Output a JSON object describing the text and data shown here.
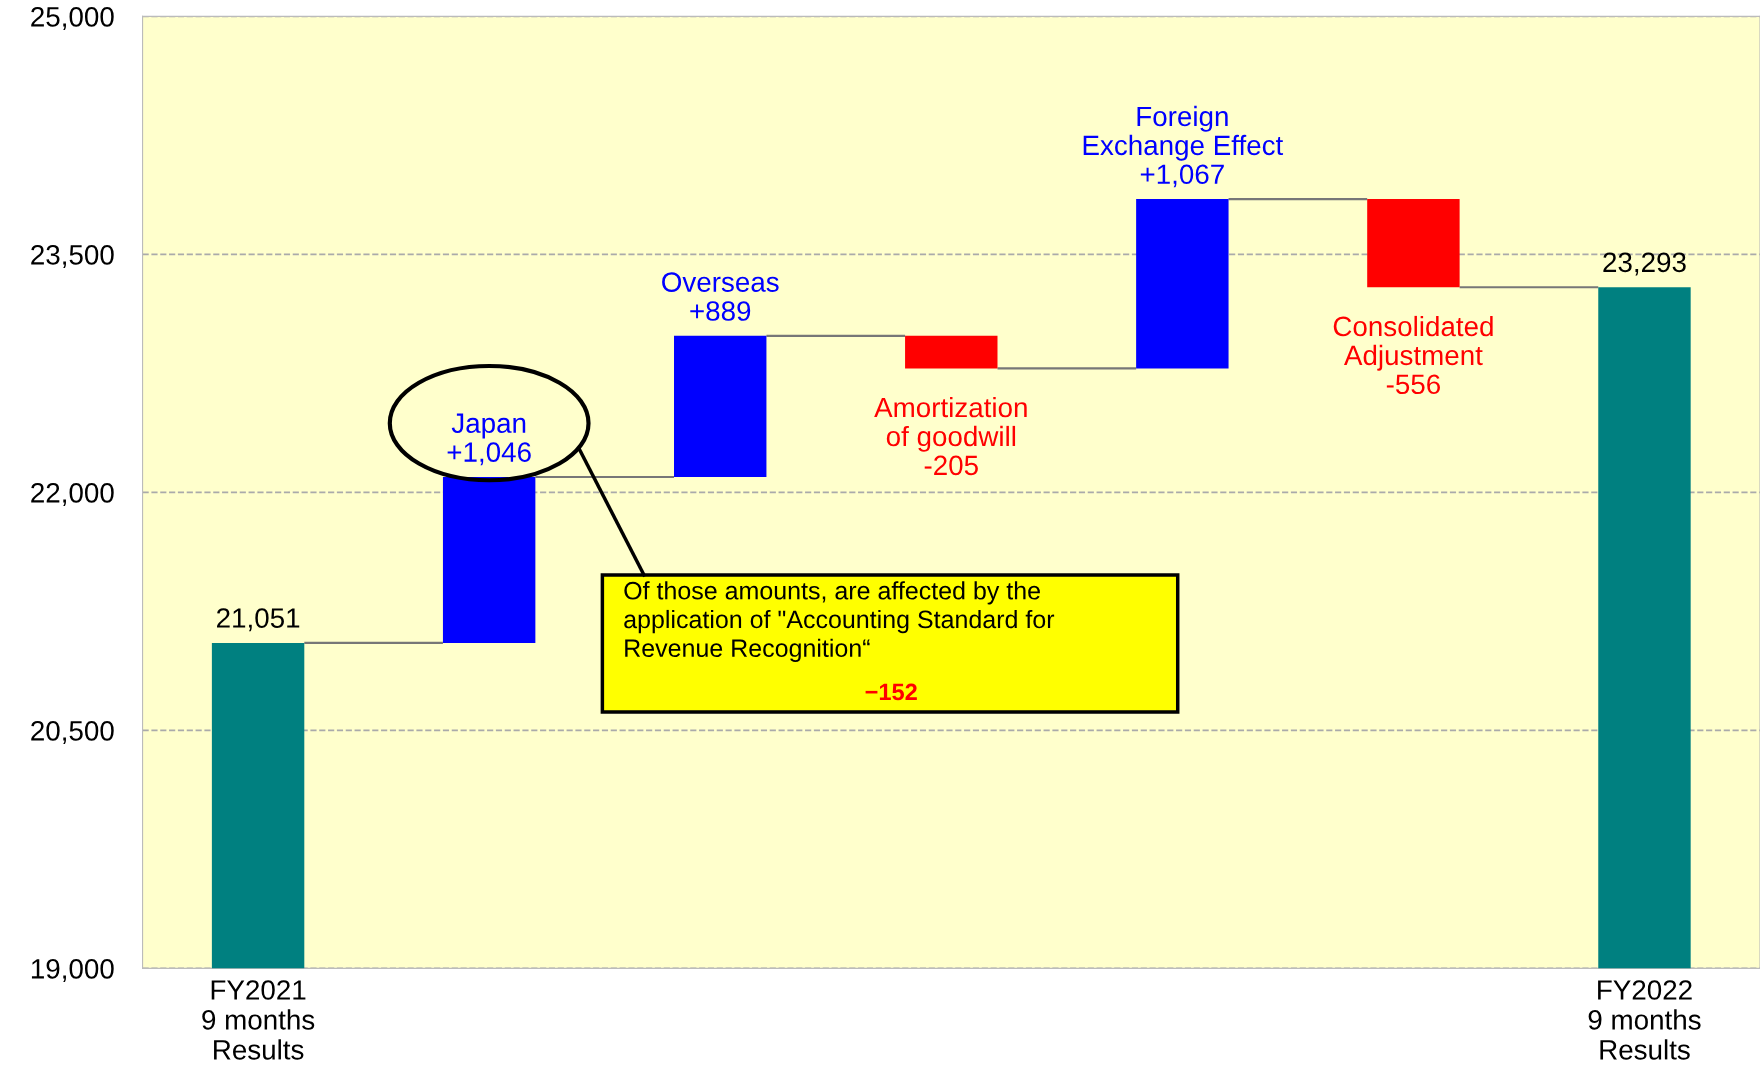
{
  "chart_data": {
    "type": "bar",
    "categories": [
      "FY2021\n9 months\nResults",
      null,
      null,
      null,
      null,
      null,
      "FY2022\n9 months\nResults"
    ],
    "values": [
      21051,
      1046,
      889,
      -205,
      1067,
      -556,
      23293
    ],
    "base": [
      0,
      21051,
      22097,
      22986,
      22781,
      23848,
      0
    ],
    "colors": [
      "#008080",
      "#0000ff",
      "#0000ff",
      "#ff0000",
      "#0000ff",
      "#ff0000",
      "#008080"
    ],
    "value_labels": [
      "21,051",
      "Japan\n+1,046",
      "Overseas\n+889",
      "Amortization\nof goodwill\n-205",
      "Foreign\nExchange Effect\n+1,067",
      "Consolidated\nAdjustment\n-556",
      "23,293"
    ],
    "annotations": [
      "Of those amounts, are affected by the\napplication of \"Accounting Standard for\nRevenue Recognition“",
      "−152"
    ],
    "ylim": [
      19000,
      25000
    ],
    "yticks": [
      {
        "value": 19000,
        "label": "19,000"
      },
      {
        "value": 20500,
        "label": "20,500"
      },
      {
        "value": 22000,
        "label": "22,000"
      },
      {
        "value": 23500,
        "label": "23,500"
      },
      {
        "value": 25000,
        "label": "25,000"
      }
    ],
    "grid": "y"
  }
}
